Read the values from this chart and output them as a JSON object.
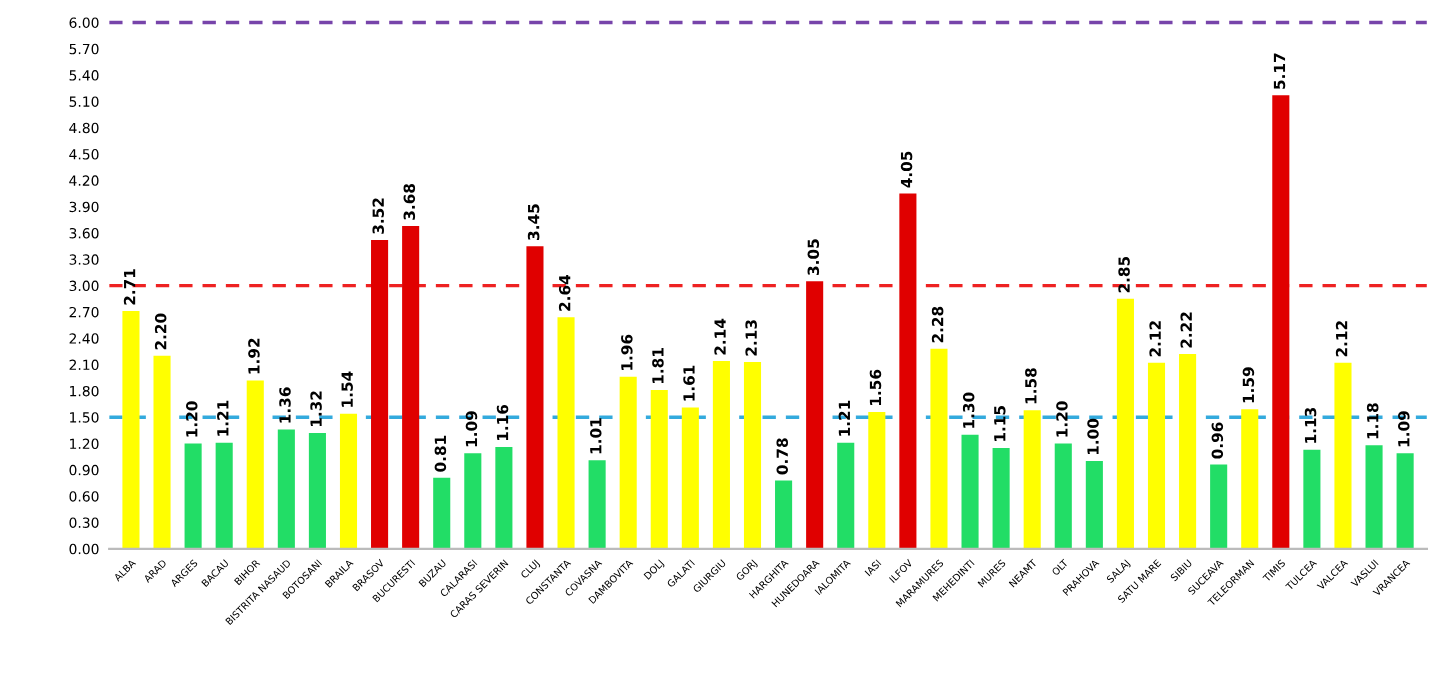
{
  "chart_data": {
    "type": "bar",
    "categories": [
      "ALBA",
      "ARAD",
      "ARGES",
      "BACAU",
      "BIHOR",
      "BISTRITA NASAUD",
      "BOTOSANI",
      "BRAILA",
      "BRASOV",
      "BUCURESTI",
      "BUZAU",
      "CALARASI",
      "CARAS SEVERIN",
      "CLUJ",
      "CONSTANTA",
      "COVASNA",
      "DAMBOVITA",
      "DOLJ",
      "GALATI",
      "GIURGIU",
      "GORJ",
      "HARGHITA",
      "HUNEDOARA",
      "IALOMITA",
      "IASI",
      "ILFOV",
      "MARAMURES",
      "MEHEDINTI",
      "MURES",
      "NEAMT",
      "OLT",
      "PRAHOVA",
      "SALAJ",
      "SATU MARE",
      "SIBIU",
      "SUCEAVA",
      "TELEORMAN",
      "TIMIS",
      "TULCEA",
      "VALCEA",
      "VASLUI",
      "VRANCEA"
    ],
    "values": [
      2.71,
      2.2,
      1.2,
      1.21,
      1.92,
      1.36,
      1.32,
      1.54,
      3.52,
      3.68,
      0.81,
      1.09,
      1.16,
      3.45,
      2.64,
      1.01,
      1.96,
      1.81,
      1.61,
      2.14,
      2.13,
      0.78,
      3.05,
      1.21,
      1.56,
      4.05,
      2.28,
      1.3,
      1.15,
      1.58,
      1.2,
      1.0,
      2.85,
      2.12,
      2.22,
      0.96,
      1.59,
      5.17,
      1.13,
      2.12,
      1.18,
      1.09
    ],
    "colors": [
      "#ffff00",
      "#ffff00",
      "#22dd66",
      "#22dd66",
      "#ffff00",
      "#22dd66",
      "#22dd66",
      "#ffff00",
      "#e00000",
      "#e00000",
      "#22dd66",
      "#22dd66",
      "#22dd66",
      "#e00000",
      "#ffff00",
      "#22dd66",
      "#ffff00",
      "#ffff00",
      "#ffff00",
      "#ffff00",
      "#ffff00",
      "#22dd66",
      "#e00000",
      "#22dd66",
      "#ffff00",
      "#e00000",
      "#ffff00",
      "#22dd66",
      "#22dd66",
      "#ffff00",
      "#22dd66",
      "#22dd66",
      "#ffff00",
      "#ffff00",
      "#ffff00",
      "#22dd66",
      "#ffff00",
      "#e00000",
      "#22dd66",
      "#ffff00",
      "#22dd66",
      "#22dd66"
    ],
    "value_labels": [
      "2.71",
      "2.20",
      "1.20",
      "1.21",
      "1.92",
      "1.36",
      "1.32",
      "1.54",
      "3.52",
      "3.68",
      "0.81",
      "1.09",
      "1.16",
      "3.45",
      "2.64",
      "1.01",
      "1.96",
      "1.81",
      "1.61",
      "2.14",
      "2.13",
      "0.78",
      "3.05",
      "1.21",
      "1.56",
      "4.05",
      "2.28",
      "1.30",
      "1.15",
      "1.58",
      "1.20",
      "1.00",
      "2.85",
      "2.12",
      "2.22",
      "0.96",
      "1.59",
      "5.17",
      "1.13",
      "2.12",
      "1.18",
      "1.09"
    ],
    "ylim": [
      0,
      6.1
    ],
    "yticks": [
      {
        "value": 0,
        "label": "0.00"
      },
      {
        "value": 0.3,
        "label": "0.30"
      },
      {
        "value": 0.6,
        "label": "0.60"
      },
      {
        "value": 0.9,
        "label": "0.90"
      },
      {
        "value": 1.2,
        "label": "1.20"
      },
      {
        "value": 1.5,
        "label": "1.50"
      },
      {
        "value": 1.8,
        "label": "1.80"
      },
      {
        "value": 2.1,
        "label": "2.10"
      },
      {
        "value": 2.4,
        "label": "2.40"
      },
      {
        "value": 2.7,
        "label": "2.70"
      },
      {
        "value": 3.0,
        "label": "3.00"
      },
      {
        "value": 3.3,
        "label": "3.30"
      },
      {
        "value": 3.6,
        "label": "3.60"
      },
      {
        "value": 3.9,
        "label": "3.90"
      },
      {
        "value": 4.2,
        "label": "4.20"
      },
      {
        "value": 4.5,
        "label": "4.50"
      },
      {
        "value": 4.8,
        "label": "4.80"
      },
      {
        "value": 5.1,
        "label": "5.10"
      },
      {
        "value": 5.4,
        "label": "5.40"
      },
      {
        "value": 5.7,
        "label": "5.70"
      },
      {
        "value": 6.0,
        "label": "6.00"
      }
    ],
    "ref_lines": [
      {
        "axis": "y",
        "value": 1.5,
        "color": "#33aadd",
        "line_style": "dashed"
      },
      {
        "axis": "y",
        "value": 3.0,
        "color": "#ee2222",
        "line_style": "dashed"
      },
      {
        "axis": "y",
        "value": 6.0,
        "color": "#7744aa",
        "line_style": "dashed"
      }
    ],
    "grid": false,
    "legend": false
  }
}
